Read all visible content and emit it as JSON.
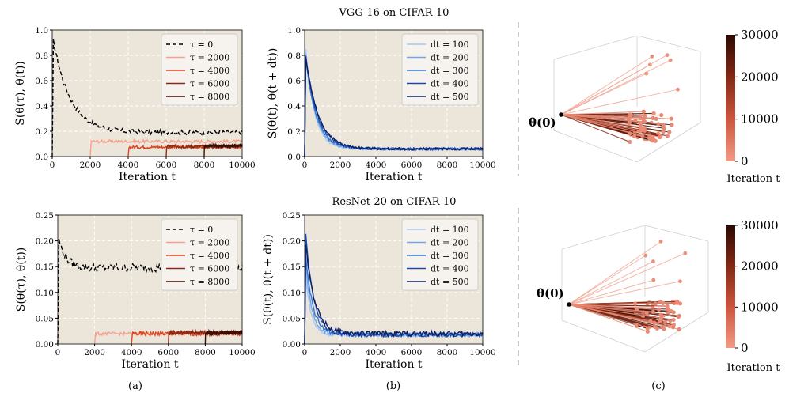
{
  "figure": {
    "row_titles": [
      "VGG-16 on CIFAR-10",
      "ResNet-20 on CIFAR-10"
    ],
    "panel_labels": [
      "(a)",
      "(b)",
      "(c)"
    ],
    "theta0_label": "θ(0)"
  },
  "colorbar": {
    "ticks": [
      "0",
      "10000",
      "20000",
      "30000"
    ],
    "label": "Iteration t",
    "colors": [
      "#f29a86",
      "#c9533a",
      "#7a2512",
      "#2b0a03"
    ]
  },
  "chart_data": [
    {
      "type": "line",
      "panel": "a",
      "row": 0,
      "xlabel": "Iteration t",
      "ylabel": "S(θ(τ), θ(t))",
      "xlim": [
        0,
        10000
      ],
      "ylim": [
        0,
        1.0
      ],
      "xticks": [
        "0",
        "2000",
        "4000",
        "6000",
        "8000",
        "10000"
      ],
      "yticks": [
        "0.0",
        "0.2",
        "0.4",
        "0.6",
        "0.8",
        "1.0"
      ],
      "legend_loc": "upper right",
      "series": [
        {
          "name": "τ = 0",
          "color": "#000000",
          "dash": true,
          "start": 0,
          "level": 0.19,
          "noise": 0.018,
          "peak": 0.97,
          "decay": 900
        },
        {
          "name": "τ = 2000",
          "color": "#f4a08c",
          "dash": false,
          "start": 2000,
          "level": 0.12,
          "noise": 0.012
        },
        {
          "name": "τ = 4000",
          "color": "#dd4420",
          "dash": false,
          "start": 4000,
          "level": 0.075,
          "noise": 0.012
        },
        {
          "name": "τ = 6000",
          "color": "#8a2a14",
          "dash": false,
          "start": 6000,
          "level": 0.08,
          "noise": 0.012
        },
        {
          "name": "τ = 8000",
          "color": "#3a0e05",
          "dash": false,
          "start": 8000,
          "level": 0.085,
          "noise": 0.012
        }
      ]
    },
    {
      "type": "line",
      "panel": "b",
      "row": 0,
      "xlabel": "Iteration t",
      "ylabel": "S(θ(t), θ(t + dt))",
      "xlim": [
        0,
        10000
      ],
      "ylim": [
        0,
        1.0
      ],
      "xticks": [
        "0",
        "2000",
        "4000",
        "6000",
        "8000",
        "10000"
      ],
      "yticks": [
        "0.0",
        "0.2",
        "0.4",
        "0.6",
        "0.8",
        "1.0"
      ],
      "legend_loc": "upper right",
      "series": [
        {
          "name": "dt = 100",
          "color": "#a6c8f0",
          "level": 0.06,
          "noise": 0.01,
          "peak": 0.95,
          "decay": 500
        },
        {
          "name": "dt = 200",
          "color": "#6fa5e6",
          "level": 0.06,
          "noise": 0.01,
          "peak": 0.9,
          "decay": 550
        },
        {
          "name": "dt = 300",
          "color": "#3576d4",
          "level": 0.06,
          "noise": 0.01,
          "peak": 0.85,
          "decay": 600
        },
        {
          "name": "dt = 400",
          "color": "#1a4aa8",
          "level": 0.06,
          "noise": 0.01,
          "peak": 0.88,
          "decay": 650
        },
        {
          "name": "dt = 500",
          "color": "#0c1f66",
          "level": 0.06,
          "noise": 0.01,
          "peak": 0.86,
          "decay": 700
        }
      ]
    },
    {
      "type": "line",
      "panel": "a",
      "row": 1,
      "xlabel": "Iteration t",
      "ylabel": "S(θ(τ), θ(t))",
      "xlim": [
        0,
        10000
      ],
      "ylim": [
        0,
        0.25
      ],
      "xticks": [
        "0",
        "2000",
        "4000",
        "6000",
        "8000",
        "10000"
      ],
      "yticks": [
        "0.00",
        "0.05",
        "0.10",
        "0.15",
        "0.20",
        "0.25"
      ],
      "legend_loc": "upper right",
      "series": [
        {
          "name": "τ = 0",
          "color": "#000000",
          "dash": true,
          "start": 0,
          "level": 0.148,
          "noise": 0.008,
          "peak": 0.21,
          "decay": 400
        },
        {
          "name": "τ = 2000",
          "color": "#f4a08c",
          "dash": false,
          "start": 2000,
          "level": 0.02,
          "noise": 0.003
        },
        {
          "name": "τ = 4000",
          "color": "#dd4420",
          "dash": false,
          "start": 4000,
          "level": 0.02,
          "noise": 0.004
        },
        {
          "name": "τ = 6000",
          "color": "#8a2a14",
          "dash": false,
          "start": 6000,
          "level": 0.022,
          "noise": 0.004
        },
        {
          "name": "τ = 8000",
          "color": "#3a0e05",
          "dash": false,
          "start": 8000,
          "level": 0.022,
          "noise": 0.004
        }
      ]
    },
    {
      "type": "line",
      "panel": "b",
      "row": 1,
      "xlabel": "Iteration t",
      "ylabel": "S(θ(t), θ(t + dt))",
      "xlim": [
        0,
        10000
      ],
      "ylim": [
        0,
        0.25
      ],
      "xticks": [
        "0",
        "2000",
        "4000",
        "6000",
        "8000",
        "10000"
      ],
      "yticks": [
        "0.00",
        "0.05",
        "0.10",
        "0.15",
        "0.20",
        "0.25"
      ],
      "legend_loc": "upper right",
      "series": [
        {
          "name": "dt = 100",
          "color": "#a6c8f0",
          "level": 0.018,
          "noise": 0.004,
          "peak": 0.16,
          "decay": 300
        },
        {
          "name": "dt = 200",
          "color": "#6fa5e6",
          "level": 0.018,
          "noise": 0.004,
          "peak": 0.18,
          "decay": 350
        },
        {
          "name": "dt = 300",
          "color": "#3576d4",
          "level": 0.018,
          "noise": 0.004,
          "peak": 0.2,
          "decay": 400
        },
        {
          "name": "dt = 400",
          "color": "#1a4aa8",
          "level": 0.018,
          "noise": 0.004,
          "peak": 0.24,
          "decay": 450
        },
        {
          "name": "dt = 500",
          "color": "#0c1f66",
          "level": 0.02,
          "noise": 0.005,
          "peak": 0.22,
          "decay": 500
        }
      ]
    }
  ]
}
